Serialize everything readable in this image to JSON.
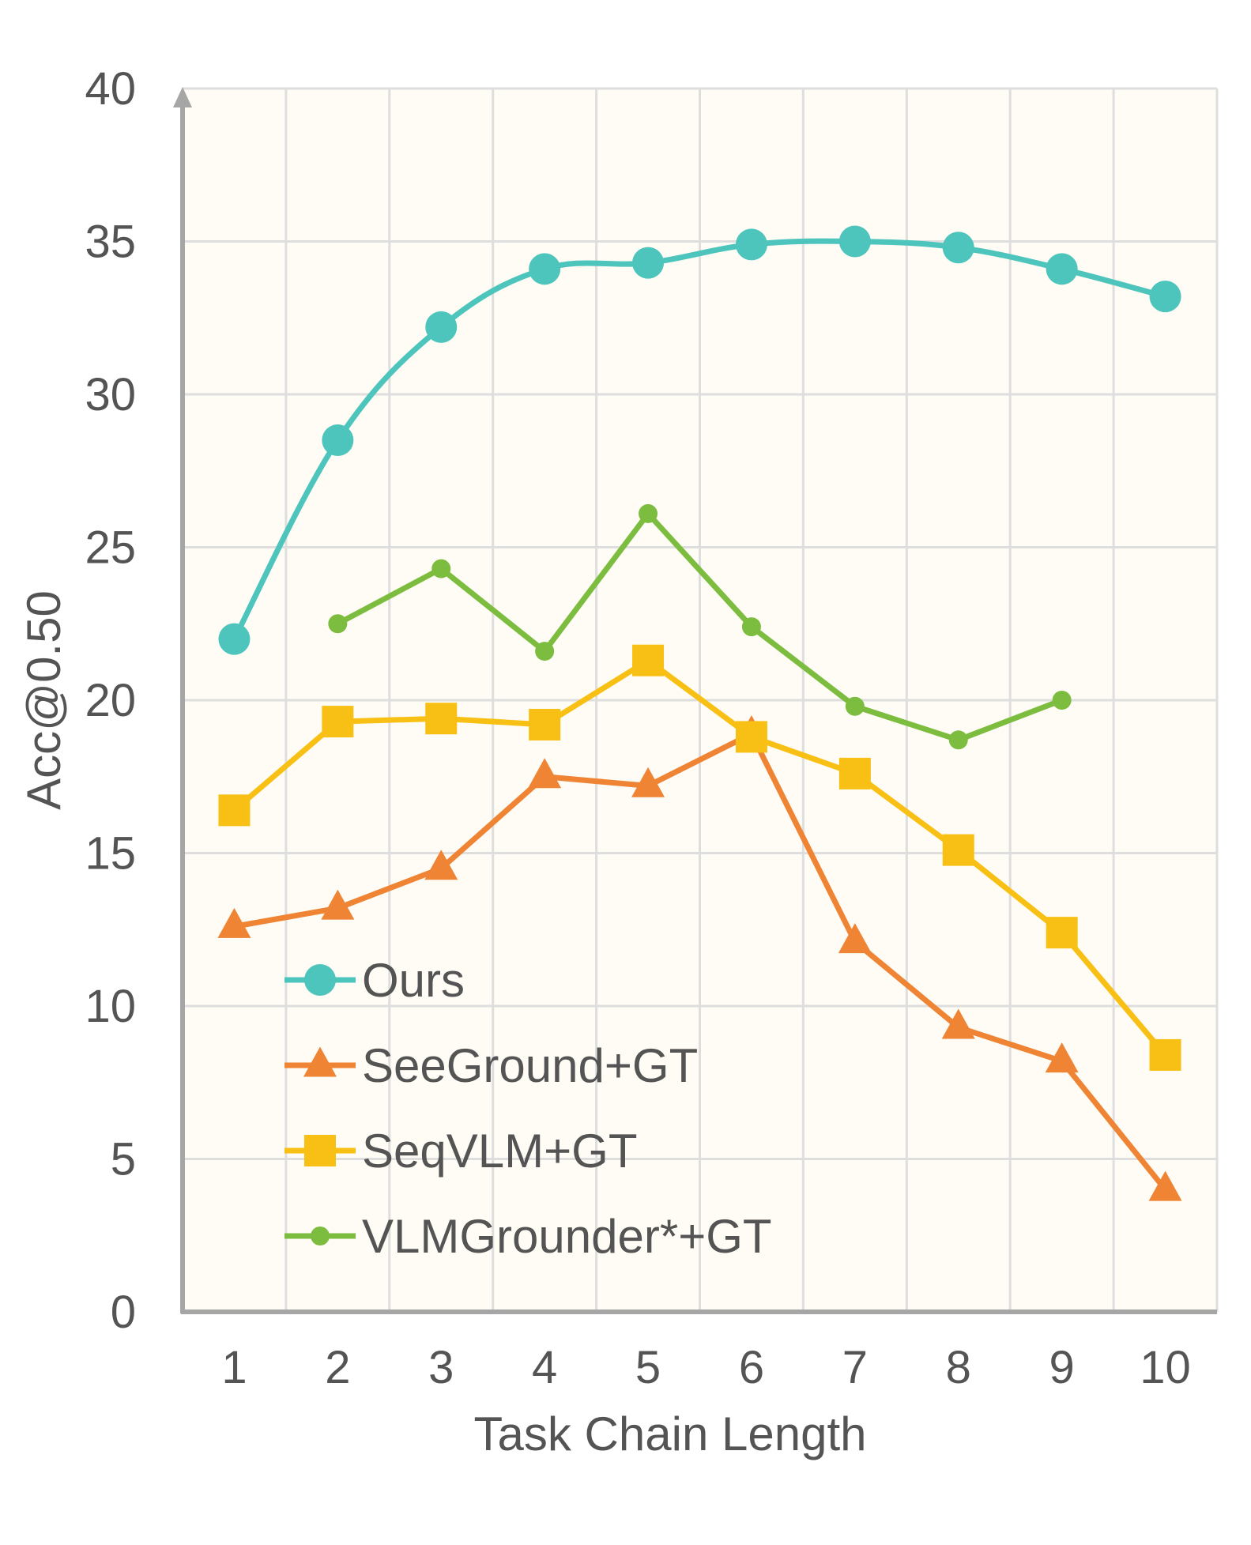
{
  "chart_data": {
    "type": "line",
    "title": "",
    "xlabel": "Task Chain Length",
    "ylabel": "Acc@0.50",
    "categories": [
      "1",
      "2",
      "3",
      "4",
      "5",
      "6",
      "7",
      "8",
      "9",
      "10"
    ],
    "ylim": [
      0,
      40
    ],
    "yticks": [
      "0",
      "5",
      "10",
      "15",
      "20",
      "25",
      "30",
      "35",
      "40"
    ],
    "grid": true,
    "legend_position": "bottom-left",
    "series": [
      {
        "name": "Ours",
        "marker": "circle",
        "color": "#4dc5bc",
        "values": [
          22.0,
          28.5,
          32.2,
          34.1,
          34.3,
          34.9,
          35.0,
          34.8,
          34.1,
          33.2
        ]
      },
      {
        "name": "SeeGround+GT",
        "marker": "triangle",
        "color": "#ee8434",
        "values": [
          12.6,
          13.2,
          14.5,
          17.5,
          17.2,
          18.9,
          12.1,
          9.3,
          8.2,
          4.0
        ]
      },
      {
        "name": "SeqVLM+GT",
        "marker": "square",
        "color": "#f8c014",
        "values": [
          16.4,
          19.3,
          19.4,
          19.2,
          21.3,
          18.8,
          17.6,
          15.1,
          12.4,
          8.4
        ]
      },
      {
        "name": "VLMGrounder*+GT",
        "marker": "small-circle",
        "color": "#7cbd40",
        "values": [
          null,
          22.5,
          24.3,
          21.6,
          26.1,
          22.4,
          19.8,
          18.7,
          20.0,
          null
        ]
      }
    ]
  }
}
